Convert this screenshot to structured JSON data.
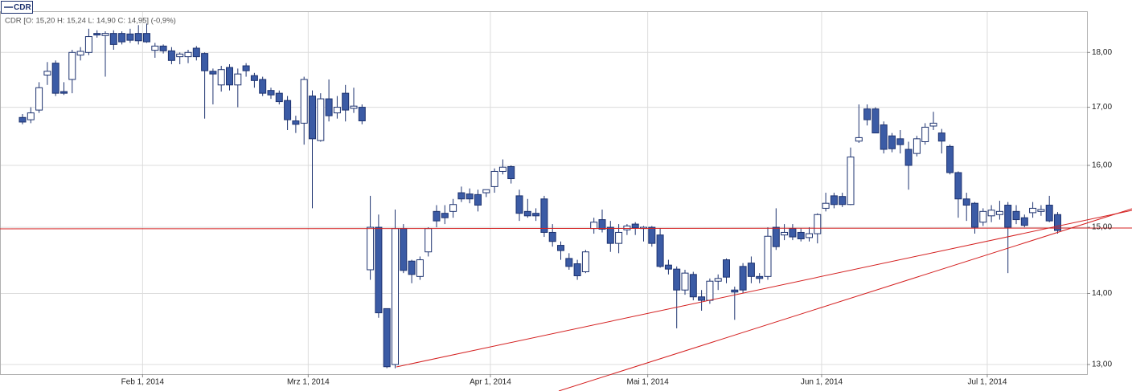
{
  "chart_data": {
    "type": "candlestick",
    "info": "CDR [O: 15,20  H: 15,24  L: 14,90  C: 14,95] (-0,9%)",
    "categories": [
      null,
      null,
      null,
      null,
      null,
      null,
      null,
      null,
      null,
      null,
      null,
      null,
      null,
      null,
      null,
      "Feb 1, 2014",
      null,
      null,
      null,
      null,
      null,
      null,
      null,
      null,
      null,
      null,
      null,
      null,
      null,
      null,
      null,
      null,
      null,
      null,
      null,
      "Mrz 1, 2014",
      null,
      null,
      null,
      null,
      null,
      null,
      null,
      null,
      null,
      null,
      null,
      null,
      null,
      null,
      null,
      null,
      null,
      null,
      null,
      null,
      null,
      "Apr 1, 2014",
      null,
      null,
      null,
      null,
      null,
      null,
      null,
      null,
      null,
      null,
      null,
      null,
      null,
      null,
      null,
      null,
      null,
      null,
      "Mai 1, 2014",
      null,
      null,
      null,
      null,
      null,
      null,
      null,
      null,
      null,
      null,
      null,
      null,
      null,
      null,
      null,
      null,
      null,
      null,
      null,
      null,
      "Jun 1, 2014",
      null,
      null,
      null,
      null,
      null,
      null,
      null,
      null,
      null,
      null,
      null,
      null,
      null,
      null,
      null,
      null,
      null,
      null,
      null,
      "Jul 1, 2014",
      null,
      null,
      null,
      null,
      null,
      null,
      null,
      null
    ],
    "series": [
      {
        "name": "CDR",
        "color": "#1e3370",
        "up_color": "#ffffff",
        "down_color": "#3b5ba5",
        "open": [
          16.82,
          16.78,
          16.95,
          17.58,
          17.8,
          17.28,
          17.5,
          17.95,
          18.0,
          18.36,
          18.32,
          18.36,
          18.36,
          18.35,
          18.36,
          18.36,
          18.04,
          18.12,
          18.03,
          17.92,
          17.92,
          18.08,
          17.98,
          17.65,
          17.4,
          17.72,
          17.4,
          17.75,
          17.57,
          17.5,
          17.3,
          17.25,
          17.12,
          16.76,
          16.72,
          17.2,
          16.42,
          17.15,
          16.9,
          17.25,
          16.98,
          17.0,
          14.35,
          15.0,
          13.78,
          13.0,
          14.98,
          14.48,
          14.25,
          14.62,
          15.25,
          15.22,
          15.25,
          15.55,
          15.53,
          15.52,
          15.55,
          15.65,
          15.9,
          15.98,
          15.5,
          15.25,
          15.22,
          15.45,
          14.92,
          14.72,
          14.52,
          14.44,
          14.32,
          14.98,
          15.12,
          15.0,
          14.75,
          14.96,
          15.05,
          14.98,
          15.0,
          14.88,
          14.42,
          14.36,
          14.05,
          14.28,
          13.95,
          13.9,
          14.18,
          14.5,
          14.05,
          14.4,
          14.45,
          14.25,
          14.25,
          15.0,
          14.88,
          14.98,
          14.92,
          14.84,
          14.9,
          15.3,
          15.5,
          15.49,
          15.36,
          16.41,
          16.97,
          16.97,
          16.69,
          16.5,
          16.45,
          16.27,
          16.2,
          16.4,
          16.67,
          16.55,
          16.32,
          15.88,
          15.45,
          15.38,
          15.08,
          15.18,
          15.2,
          15.35,
          15.25,
          15.15,
          15.23,
          15.25,
          15.35,
          15.2
        ],
        "high": [
          16.88,
          17.0,
          17.45,
          17.82,
          17.85,
          17.45,
          18.05,
          18.1,
          18.45,
          18.42,
          18.4,
          18.42,
          18.4,
          18.45,
          18.52,
          18.55,
          18.18,
          18.15,
          18.1,
          18.0,
          18.05,
          18.12,
          18.0,
          17.7,
          17.75,
          17.78,
          17.7,
          17.8,
          17.62,
          17.55,
          17.35,
          17.3,
          17.2,
          16.85,
          17.55,
          17.3,
          17.25,
          17.5,
          17.2,
          17.4,
          17.35,
          17.05,
          15.5,
          15.2,
          13.78,
          15.28,
          15.05,
          14.5,
          14.55,
          15.0,
          15.35,
          15.35,
          15.45,
          15.65,
          15.62,
          15.6,
          15.6,
          15.95,
          16.1,
          16.0,
          15.6,
          15.45,
          15.3,
          15.5,
          15.05,
          14.78,
          14.6,
          14.5,
          14.65,
          15.15,
          15.28,
          15.1,
          15.05,
          15.05,
          15.08,
          15.02,
          15.02,
          14.98,
          14.5,
          14.4,
          14.35,
          14.32,
          14.05,
          14.22,
          14.28,
          14.52,
          14.1,
          14.45,
          14.55,
          14.3,
          15.0,
          15.3,
          15.05,
          15.05,
          14.98,
          15.0,
          15.22,
          15.55,
          15.55,
          15.55,
          16.3,
          17.05,
          17.05,
          17.0,
          16.75,
          16.55,
          16.6,
          16.4,
          16.5,
          16.72,
          16.92,
          16.62,
          16.35,
          15.9,
          15.55,
          15.4,
          15.3,
          15.35,
          15.42,
          15.4,
          15.35,
          15.2,
          15.4,
          15.35,
          15.5,
          15.24
        ],
        "low": [
          16.7,
          16.72,
          16.9,
          17.4,
          17.2,
          17.22,
          17.25,
          17.85,
          17.95,
          18.28,
          17.55,
          18.05,
          18.15,
          18.18,
          18.15,
          18.18,
          17.9,
          17.98,
          17.78,
          17.78,
          17.8,
          17.85,
          16.8,
          17.05,
          17.28,
          17.3,
          17.0,
          17.55,
          17.35,
          17.2,
          17.15,
          17.05,
          16.6,
          16.55,
          16.35,
          15.3,
          16.4,
          16.75,
          16.8,
          16.75,
          16.9,
          16.7,
          14.2,
          13.65,
          12.95,
          12.95,
          14.3,
          14.15,
          14.2,
          14.55,
          15.0,
          15.05,
          15.15,
          15.4,
          15.38,
          15.25,
          15.48,
          15.55,
          15.85,
          15.7,
          15.1,
          15.15,
          15.1,
          14.85,
          14.7,
          14.5,
          14.35,
          14.2,
          14.3,
          14.9,
          14.92,
          14.62,
          14.6,
          14.88,
          14.88,
          14.78,
          14.7,
          14.38,
          14.28,
          13.5,
          13.98,
          13.9,
          13.75,
          13.85,
          14.05,
          14.15,
          13.62,
          14.0,
          14.15,
          14.15,
          14.2,
          14.65,
          14.8,
          14.8,
          14.78,
          14.78,
          14.75,
          15.25,
          15.3,
          15.32,
          15.35,
          16.38,
          16.68,
          16.55,
          16.2,
          16.22,
          16.2,
          15.6,
          16.15,
          16.35,
          16.6,
          16.2,
          15.85,
          15.15,
          15.1,
          14.9,
          15.02,
          15.08,
          15.12,
          14.3,
          15.05,
          15.0,
          15.15,
          15.18,
          15.08,
          14.9
        ],
        "close": [
          16.74,
          16.9,
          17.35,
          17.65,
          17.25,
          17.25,
          18.0,
          18.02,
          18.3,
          18.33,
          18.36,
          18.15,
          18.2,
          18.23,
          18.22,
          18.2,
          18.12,
          18.03,
          17.85,
          17.97,
          18.0,
          17.92,
          17.66,
          17.6,
          17.68,
          17.4,
          17.6,
          17.66,
          17.48,
          17.25,
          17.22,
          17.1,
          16.78,
          16.7,
          17.5,
          16.45,
          17.15,
          16.85,
          17.0,
          16.95,
          17.02,
          16.76,
          15.0,
          13.72,
          12.97,
          14.98,
          14.34,
          14.28,
          14.5,
          14.98,
          15.1,
          15.15,
          15.36,
          15.45,
          15.45,
          15.35,
          15.6,
          15.9,
          15.97,
          15.78,
          15.22,
          15.18,
          15.18,
          14.92,
          14.78,
          14.64,
          14.4,
          14.26,
          14.62,
          15.08,
          14.97,
          14.75,
          14.92,
          15.02,
          14.99,
          15.0,
          14.75,
          14.4,
          14.36,
          14.05,
          14.3,
          13.95,
          13.9,
          14.18,
          14.22,
          14.24,
          14.02,
          14.05,
          14.25,
          14.22,
          14.86,
          14.7,
          14.92,
          14.85,
          14.82,
          14.9,
          15.2,
          15.38,
          15.36,
          15.36,
          16.14,
          16.47,
          16.78,
          16.55,
          16.27,
          16.28,
          16.35,
          16.0,
          16.45,
          16.65,
          16.72,
          16.41,
          15.88,
          15.45,
          15.35,
          15.0,
          15.25,
          15.27,
          15.25,
          15.0,
          15.12,
          15.03,
          15.3,
          15.28,
          15.1,
          14.95
        ]
      }
    ],
    "ylim": [
      12.87,
      18.79
    ],
    "yticks": [
      {
        "value": 13,
        "label": "13,00"
      },
      {
        "value": 14,
        "label": "14,00"
      },
      {
        "value": 15,
        "label": "15,00"
      },
      {
        "value": 16,
        "label": "16,00"
      },
      {
        "value": 17,
        "label": "17,00"
      },
      {
        "value": 18,
        "label": "18,00"
      }
    ],
    "log_scale": true,
    "grid": true,
    "legend_position": "top-left"
  }
}
